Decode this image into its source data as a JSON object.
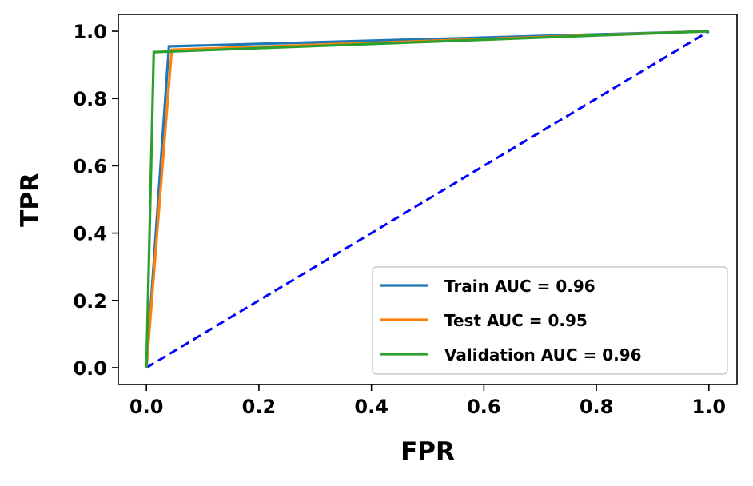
{
  "chart_data": {
    "type": "line",
    "title": "",
    "xlabel": "FPR",
    "ylabel": "TPR",
    "xlim": [
      -0.05,
      1.05
    ],
    "ylim": [
      -0.05,
      1.05
    ],
    "xticks": [
      0.0,
      0.2,
      0.4,
      0.6,
      0.8,
      1.0
    ],
    "xtick_labels": [
      "0.0",
      "0.2",
      "0.4",
      "0.6",
      "0.8",
      "1.0"
    ],
    "yticks": [
      0.0,
      0.2,
      0.4,
      0.6,
      0.8,
      1.0
    ],
    "ytick_labels": [
      "0.0",
      "0.2",
      "0.4",
      "0.6",
      "0.8",
      "1.0"
    ],
    "grid": false,
    "legend_position": "lower-right",
    "series": [
      {
        "name": "Train AUC = 0.96",
        "color": "#1f77b4",
        "x": [
          0.0,
          0.04,
          1.0
        ],
        "y": [
          0.0,
          0.955,
          1.0
        ]
      },
      {
        "name": "Test AUC = 0.95",
        "color": "#ff7f0e",
        "x": [
          0.0,
          0.045,
          1.0
        ],
        "y": [
          0.0,
          0.945,
          1.0
        ]
      },
      {
        "name": "Validation AUC = 0.96",
        "color": "#2ca02c",
        "x": [
          0.0,
          0.013,
          1.0
        ],
        "y": [
          0.0,
          0.938,
          1.0
        ]
      }
    ],
    "reference_line": {
      "color": "#0000ff",
      "style": "dashed",
      "x": [
        0.0,
        1.0
      ],
      "y": [
        0.0,
        1.0
      ]
    }
  }
}
